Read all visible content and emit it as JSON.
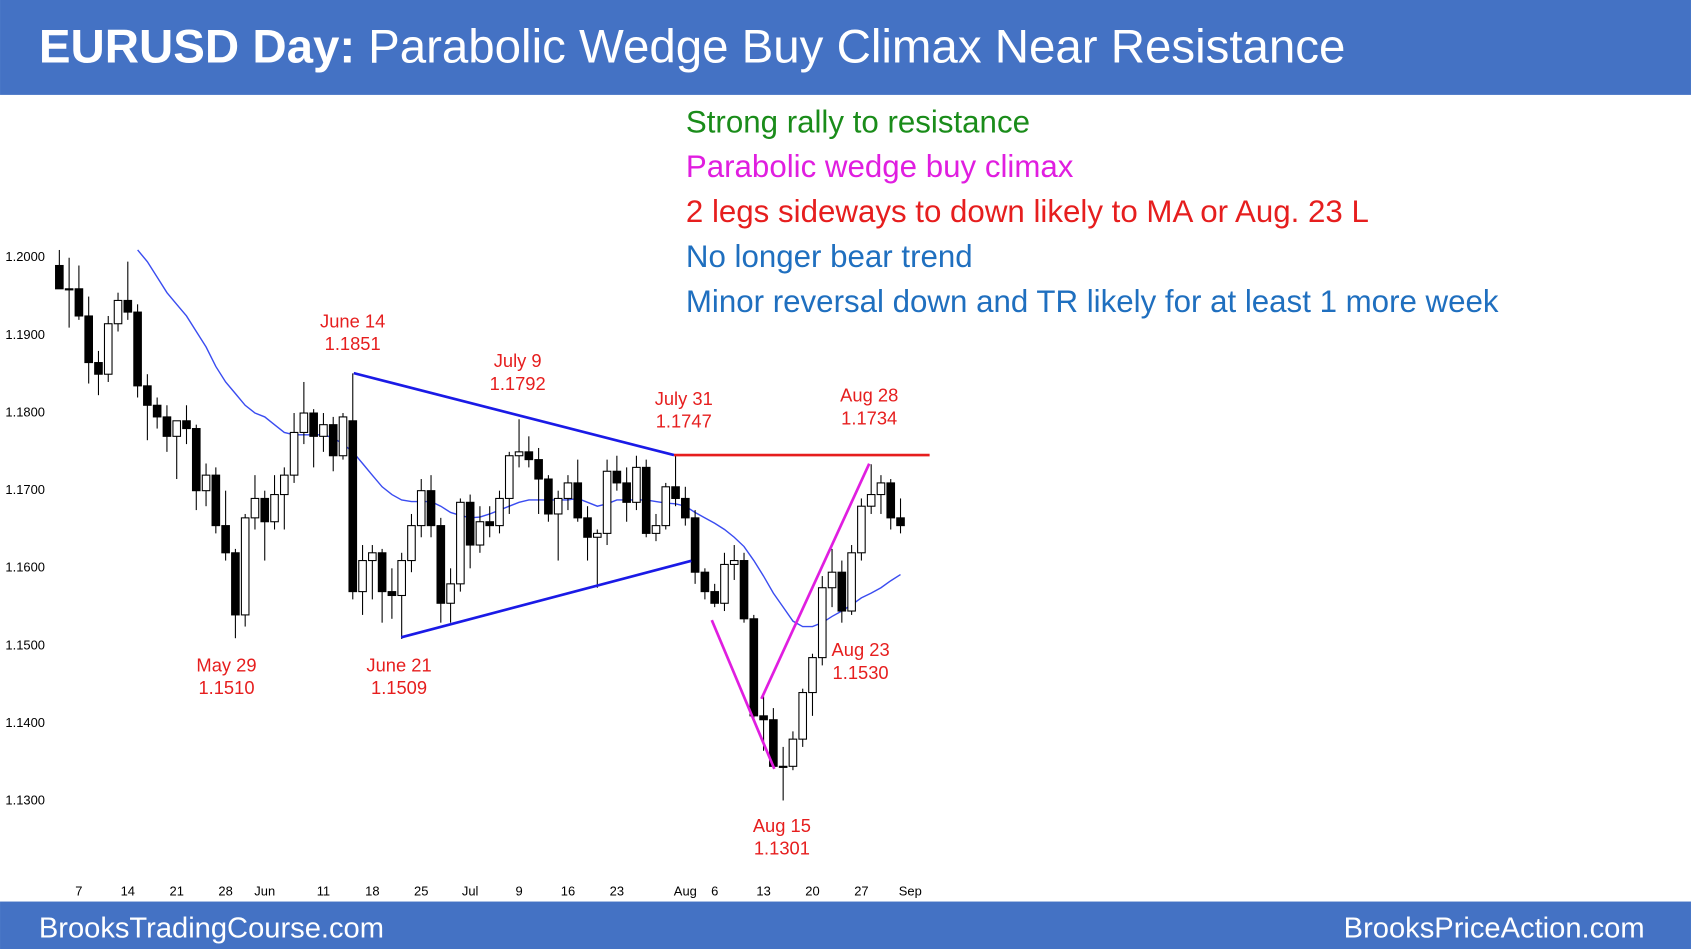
{
  "header": {
    "lead": "EURUSD Day:",
    "title": "Parabolic Wedge Buy Climax Near Resistance"
  },
  "footer": {
    "left": "BrooksTradingCourse.com",
    "right": "BrooksPriceAction.com"
  },
  "notes": [
    {
      "text": "Strong rally to resistance",
      "color": "#1a8c1a"
    },
    {
      "text": "Parabolic wedge buy climax",
      "color": "#e01ee0"
    },
    {
      "text": "2 legs sideways to down likely to MA or Aug. 23 L",
      "color": "#e61e1e"
    },
    {
      "text": "No longer bear trend",
      "color": "#1f6fbf"
    },
    {
      "text": "Minor reversal down and TR likely for at least 1 more week",
      "color": "#1f6fbf"
    }
  ],
  "chart_data": {
    "type": "candlestick",
    "x": [
      "May 3",
      "May 4",
      "May 7",
      "May 8",
      "May 9",
      "May 10",
      "May 11",
      "May 14",
      "May 15",
      "May 16",
      "May 17",
      "May 18",
      "May 21",
      "May 22",
      "May 23",
      "May 24",
      "May 25",
      "May 28",
      "May 29",
      "May 30",
      "May 31",
      "Jun 1",
      "Jun 4",
      "Jun 5",
      "Jun 6",
      "Jun 7",
      "Jun 8",
      "Jun 11",
      "Jun 12",
      "Jun 13",
      "Jun 14",
      "Jun 15",
      "Jun 18",
      "Jun 19",
      "Jun 20",
      "Jun 21",
      "Jun 22",
      "Jun 25",
      "Jun 26",
      "Jun 27",
      "Jun 28",
      "Jun 29",
      "Jul 2",
      "Jul 3",
      "Jul 4",
      "Jul 5",
      "Jul 6",
      "Jul 9",
      "Jul 10",
      "Jul 11",
      "Jul 12",
      "Jul 13",
      "Jul 16",
      "Jul 17",
      "Jul 18",
      "Jul 19",
      "Jul 20",
      "Jul 23",
      "Jul 24",
      "Jul 25",
      "Jul 26",
      "Jul 27",
      "Jul 30",
      "Jul 31",
      "Aug 1",
      "Aug 2",
      "Aug 3",
      "Aug 6",
      "Aug 7",
      "Aug 8",
      "Aug 9",
      "Aug 10",
      "Aug 13",
      "Aug 14",
      "Aug 15",
      "Aug 16",
      "Aug 17",
      "Aug 20",
      "Aug 21",
      "Aug 22",
      "Aug 23",
      "Aug 24",
      "Aug 27",
      "Aug 28",
      "Aug 29",
      "Aug 30",
      "Aug 31"
    ],
    "open": [
      1.199,
      1.196,
      1.196,
      1.1925,
      1.1865,
      1.185,
      1.1915,
      1.1945,
      1.193,
      1.1835,
      1.181,
      1.1795,
      1.177,
      1.179,
      1.178,
      1.17,
      1.172,
      1.1655,
      1.162,
      1.154,
      1.1665,
      1.169,
      1.166,
      1.1695,
      1.172,
      1.1775,
      1.18,
      1.177,
      1.1785,
      1.1745,
      1.179,
      1.157,
      1.161,
      1.162,
      1.157,
      1.1565,
      1.161,
      1.1655,
      1.17,
      1.1655,
      1.1555,
      1.158,
      1.1685,
      1.163,
      1.166,
      1.1655,
      1.169,
      1.1745,
      1.175,
      1.174,
      1.1715,
      1.167,
      1.169,
      1.171,
      1.1665,
      1.164,
      1.1645,
      1.1725,
      1.171,
      1.1685,
      1.173,
      1.1645,
      1.1655,
      1.1705,
      1.169,
      1.1665,
      1.1595,
      1.157,
      1.1555,
      1.1605,
      1.161,
      1.1535,
      1.141,
      1.1405,
      1.1345,
      1.1345,
      1.138,
      1.144,
      1.1485,
      1.1575,
      1.1595,
      1.1545,
      1.162,
      1.168,
      1.1695,
      1.171,
      1.1665
    ],
    "high": [
      1.201,
      1.2,
      1.199,
      1.195,
      1.188,
      1.1925,
      1.1955,
      1.1995,
      1.194,
      1.185,
      1.182,
      1.181,
      1.179,
      1.181,
      1.1785,
      1.1735,
      1.173,
      1.17,
      1.1625,
      1.167,
      1.172,
      1.17,
      1.172,
      1.173,
      1.18,
      1.184,
      1.1805,
      1.18,
      1.1795,
      1.18,
      1.1851,
      1.163,
      1.163,
      1.1625,
      1.16,
      1.162,
      1.167,
      1.1715,
      1.172,
      1.1665,
      1.16,
      1.169,
      1.1695,
      1.168,
      1.168,
      1.17,
      1.175,
      1.1792,
      1.177,
      1.1755,
      1.172,
      1.17,
      1.172,
      1.174,
      1.168,
      1.165,
      1.174,
      1.1745,
      1.173,
      1.1745,
      1.174,
      1.167,
      1.171,
      1.1747,
      1.1705,
      1.1675,
      1.16,
      1.158,
      1.162,
      1.163,
      1.162,
      1.154,
      1.1435,
      1.142,
      1.137,
      1.139,
      1.1445,
      1.149,
      1.159,
      1.1625,
      1.161,
      1.163,
      1.169,
      1.1734,
      1.172,
      1.1715,
      1.169
    ],
    "low": [
      1.196,
      1.191,
      1.192,
      1.1838,
      1.1823,
      1.184,
      1.1905,
      1.192,
      1.182,
      1.1765,
      1.178,
      1.175,
      1.1715,
      1.176,
      1.1675,
      1.168,
      1.1645,
      1.161,
      1.151,
      1.1525,
      1.165,
      1.161,
      1.165,
      1.165,
      1.171,
      1.176,
      1.173,
      1.175,
      1.1725,
      1.174,
      1.156,
      1.154,
      1.156,
      1.153,
      1.1535,
      1.1509,
      1.1595,
      1.164,
      1.164,
      1.153,
      1.153,
      1.157,
      1.16,
      1.162,
      1.164,
      1.1645,
      1.167,
      1.173,
      1.173,
      1.167,
      1.166,
      1.161,
      1.1675,
      1.166,
      1.161,
      1.1575,
      1.163,
      1.17,
      1.166,
      1.1675,
      1.164,
      1.1635,
      1.165,
      1.168,
      1.1655,
      1.158,
      1.156,
      1.155,
      1.1545,
      1.1585,
      1.153,
      1.1405,
      1.1365,
      1.1345,
      1.1301,
      1.134,
      1.137,
      1.141,
      1.1475,
      1.155,
      1.153,
      1.154,
      1.161,
      1.167,
      1.167,
      1.165,
      1.1645
    ],
    "close": [
      1.196,
      1.196,
      1.1925,
      1.1865,
      1.185,
      1.1915,
      1.1945,
      1.193,
      1.1835,
      1.181,
      1.1795,
      1.177,
      1.179,
      1.178,
      1.17,
      1.172,
      1.1655,
      1.162,
      1.154,
      1.1665,
      1.169,
      1.166,
      1.1695,
      1.172,
      1.1775,
      1.18,
      1.177,
      1.1785,
      1.1745,
      1.1795,
      1.157,
      1.161,
      1.162,
      1.157,
      1.1565,
      1.161,
      1.1655,
      1.17,
      1.1655,
      1.1555,
      1.158,
      1.1685,
      1.163,
      1.166,
      1.1655,
      1.169,
      1.1745,
      1.175,
      1.174,
      1.1715,
      1.167,
      1.169,
      1.171,
      1.1665,
      1.164,
      1.1645,
      1.1725,
      1.171,
      1.1685,
      1.173,
      1.1645,
      1.1655,
      1.1705,
      1.169,
      1.1665,
      1.1595,
      1.157,
      1.1555,
      1.1605,
      1.161,
      1.1535,
      1.141,
      1.1405,
      1.1345,
      1.1345,
      1.138,
      1.144,
      1.1485,
      1.1575,
      1.1595,
      1.1545,
      1.162,
      1.168,
      1.1695,
      1.171,
      1.1665,
      1.1655
    ],
    "up_color": "#ffffff",
    "down_color": "#000000",
    "moving_average": {
      "color": "#3a4cf0",
      "values": [
        null,
        null,
        null,
        null,
        null,
        null,
        null,
        null,
        1.201,
        1.1995,
        1.1975,
        1.1955,
        1.194,
        1.1925,
        1.1905,
        1.1885,
        1.186,
        1.184,
        1.1825,
        1.181,
        1.18,
        1.1795,
        1.1785,
        1.1775,
        1.1772,
        1.1772,
        1.1772,
        1.1772,
        1.1768,
        1.176,
        1.175,
        1.1735,
        1.172,
        1.1705,
        1.1695,
        1.1688,
        1.1686,
        1.1686,
        1.1686,
        1.168,
        1.1672,
        1.1668,
        1.1665,
        1.1666,
        1.167,
        1.1675,
        1.168,
        1.1685,
        1.1688,
        1.1688,
        1.1688,
        1.1688,
        1.1688,
        1.169,
        1.1685,
        1.168,
        1.1683,
        1.1688,
        1.1688,
        1.1688,
        1.1688,
        1.1686,
        1.1684,
        1.1683,
        1.168,
        1.1672,
        1.1665,
        1.1658,
        1.165,
        1.164,
        1.1628,
        1.161,
        1.159,
        1.1568,
        1.155,
        1.1532,
        1.1525,
        1.1525,
        1.153,
        1.1538,
        1.1545,
        1.1553,
        1.1562,
        1.1568,
        1.1575,
        1.1584,
        1.1592
      ]
    },
    "ylim": [
      1.12,
      1.22
    ],
    "yticks": [
      {
        "value": 1.2,
        "label": "1.2000"
      },
      {
        "value": 1.19,
        "label": "1.1900"
      },
      {
        "value": 1.18,
        "label": "1.1800"
      },
      {
        "value": 1.17,
        "label": "1.1700"
      },
      {
        "value": 1.16,
        "label": "1.1600"
      },
      {
        "value": 1.15,
        "label": "1.1500"
      },
      {
        "value": 1.14,
        "label": "1.1400"
      },
      {
        "value": 1.13,
        "label": "1.1300"
      }
    ],
    "xticks": [
      {
        "value": "May 7",
        "label": "7"
      },
      {
        "value": "May 14",
        "label": "14"
      },
      {
        "value": "May 21",
        "label": "21"
      },
      {
        "value": "May 28",
        "label": "28"
      },
      {
        "value": "Jun 1",
        "label": "Jun"
      },
      {
        "value": "Jun 11",
        "label": "11"
      },
      {
        "value": "Jun 18",
        "label": "18"
      },
      {
        "value": "Jun 25",
        "label": "25"
      },
      {
        "value": "Jul 2",
        "label": "Jul"
      },
      {
        "value": "Jul 9",
        "label": "9"
      },
      {
        "value": "Jul 16",
        "label": "16"
      },
      {
        "value": "Jul 23",
        "label": "23"
      },
      {
        "value": "Aug 1",
        "label": "Aug"
      },
      {
        "value": "Aug 6",
        "label": "6"
      },
      {
        "value": "Aug 13",
        "label": "13"
      },
      {
        "value": "Aug 20",
        "label": "20"
      },
      {
        "value": "Aug 27",
        "label": "27"
      },
      {
        "value": "Sep 3",
        "label": "Sep"
      }
    ],
    "grid": false,
    "annotations": [
      {
        "text": "June 14",
        "price": "1.1851"
      },
      {
        "text": "July 9",
        "price": "1.1792"
      },
      {
        "text": "July 31",
        "price": "1.1747"
      },
      {
        "text": "Aug 28",
        "price": "1.1734"
      },
      {
        "text": "May 29",
        "price": "1.1510"
      },
      {
        "text": "June 21",
        "price": "1.1509"
      },
      {
        "text": "Aug 23",
        "price": "1.1530"
      },
      {
        "text": "Aug 15",
        "price": "1.1301"
      }
    ]
  }
}
